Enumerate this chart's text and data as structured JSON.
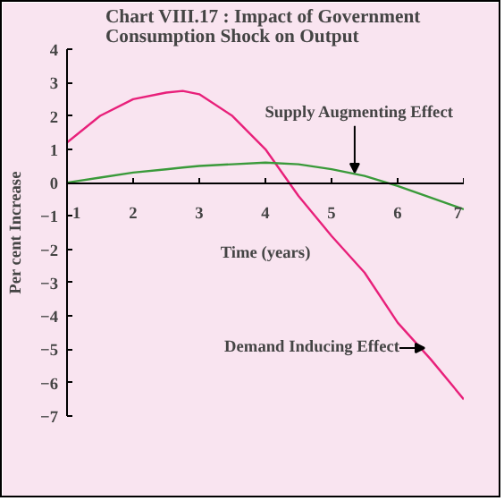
{
  "chart_data": {
    "type": "line",
    "title": "Chart VIII.17 :  Impact of Government\nConsumption Shock on Output",
    "xlabel": "Time (years)",
    "ylabel": "Per cent Increase",
    "x": [
      1,
      1.5,
      2,
      2.5,
      2.75,
      3,
      3.5,
      4,
      4.5,
      5,
      5.5,
      6,
      6.5,
      7
    ],
    "series": [
      {
        "color": "#e8207a",
        "values": [
          1.2,
          2.0,
          2.5,
          2.7,
          2.75,
          2.65,
          2.0,
          1.0,
          -0.4,
          -1.6,
          -2.7,
          -4.2,
          -5.3,
          -6.5
        ]
      },
      {
        "color": "#3a9a3a",
        "values": [
          0,
          0.15,
          0.3,
          0.4,
          0.45,
          0.5,
          0.55,
          0.6,
          0.55,
          0.4,
          0.2,
          -0.1,
          -0.45,
          -0.8
        ]
      }
    ],
    "xlim": [
      1,
      7
    ],
    "xticks": [
      1,
      2,
      3,
      4,
      5,
      6,
      7
    ],
    "ylim": [
      -7,
      4
    ],
    "yticks": [
      -7,
      -6,
      -5,
      -4,
      -3,
      -2,
      -1,
      0,
      1,
      2,
      3,
      4
    ],
    "grid": false,
    "marker": "none",
    "line_style": "solid",
    "annotations": [
      {
        "text": "Supply Augmenting Effect",
        "x": 5.35,
        "y": 0.3
      },
      "Demand Inducing Effect"
    ]
  }
}
